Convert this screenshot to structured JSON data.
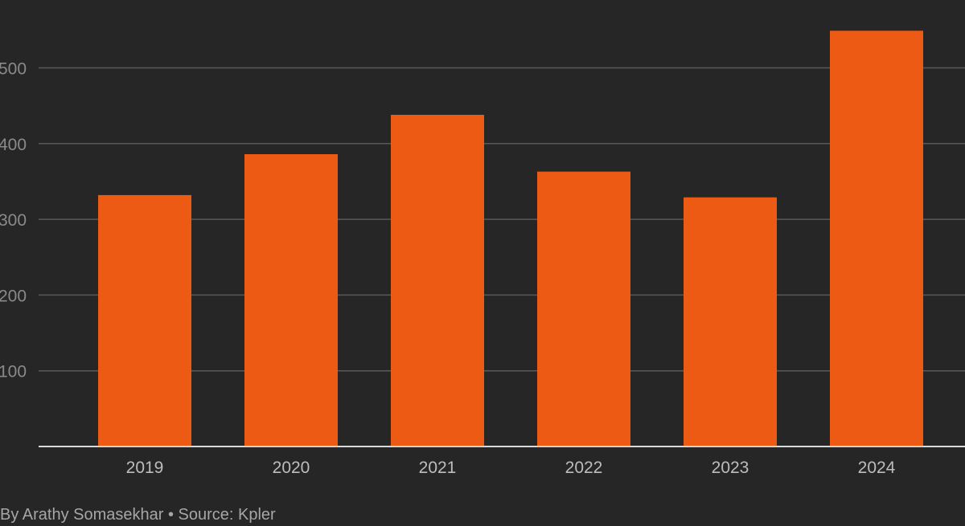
{
  "chart_data": {
    "type": "bar",
    "categories": [
      "2019",
      "2020",
      "2021",
      "2022",
      "2023",
      "2024"
    ],
    "values": [
      332,
      386,
      438,
      363,
      329,
      549
    ],
    "yticks": [
      100,
      200,
      300,
      400,
      500
    ],
    "ylim": [
      0,
      575
    ],
    "grid": true,
    "title": "",
    "xlabel": "",
    "ylabel": ""
  },
  "colors": {
    "background": "#262626",
    "bar": "#ed5a13",
    "gridline": "#595959",
    "baseline": "#d9d9d9"
  },
  "credit": "By Arathy Somasekhar • Source: Kpler"
}
